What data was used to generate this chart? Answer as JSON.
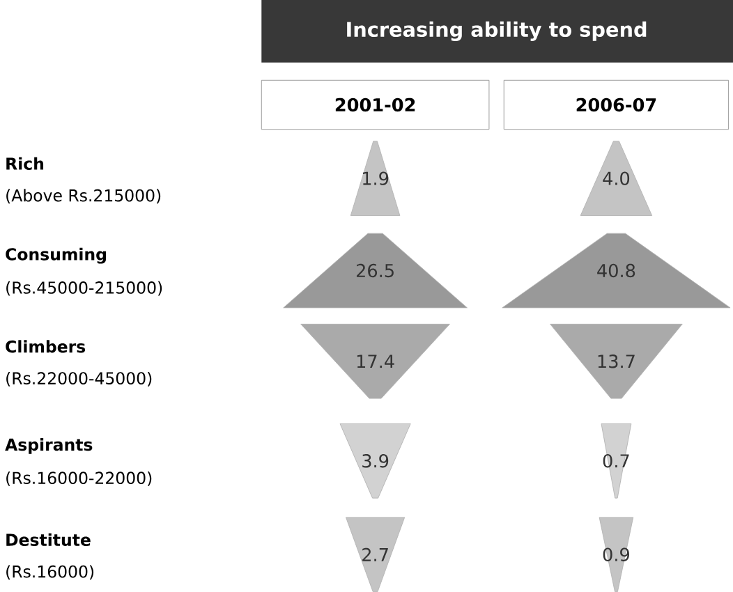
{
  "chart_data": {
    "type": "other",
    "title": "Increasing ability to spend",
    "categories": [
      "Rich",
      "Consuming",
      "Climbers",
      "Aspirants",
      "Destitute"
    ],
    "annotations": [
      "(Above Rs.215000)",
      "(Rs.45000-215000)",
      "(Rs.22000-45000)",
      "(Rs.16000-22000)",
      "(Rs.16000)"
    ],
    "series": [
      {
        "name": "2001-02",
        "values": [
          1.9,
          26.5,
          17.4,
          3.9,
          2.7
        ],
        "colors": [
          "#c4c4c4",
          "#999999",
          "#aaaaaa",
          "#d2d2d2",
          "#c4c4c4"
        ],
        "value_labels": [
          "1.9",
          "26.5",
          "17.4",
          "3.9",
          "2.7"
        ]
      },
      {
        "name": "2006-07",
        "values": [
          4.0,
          40.8,
          13.7,
          0.7,
          0.9
        ],
        "colors": [
          "#c4c4c4",
          "#999999",
          "#aaaaaa",
          "#d2d2d2",
          "#c4c4c4"
        ],
        "value_labels": [
          "4.0",
          "40.8",
          "13.7",
          "0.7",
          "0.9"
        ]
      }
    ]
  }
}
